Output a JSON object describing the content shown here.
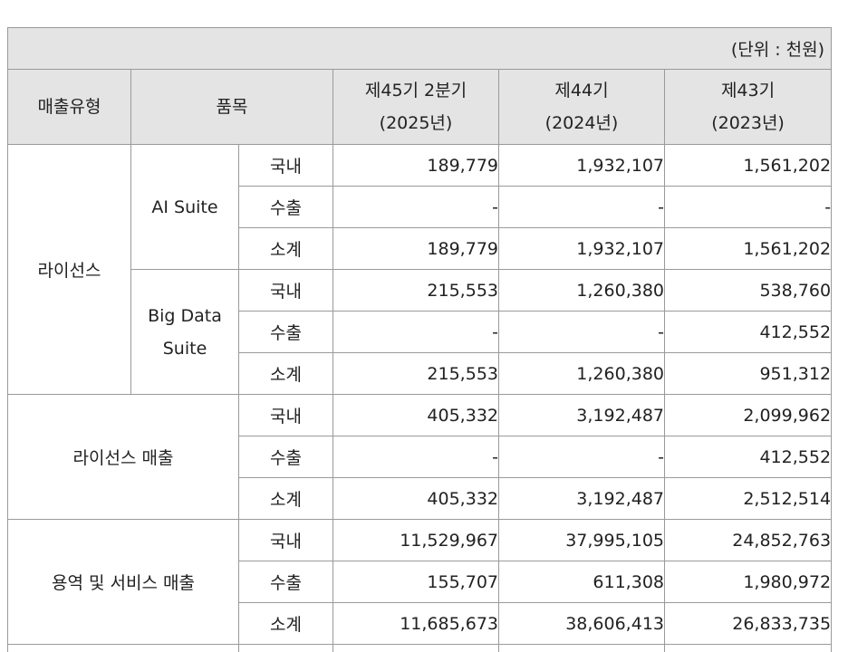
{
  "unit_label": "(단위 : 천원)",
  "headers": {
    "type": "매출유형",
    "item": "품목",
    "p45_line1": "제45기 2분기",
    "p45_line2": "(2025년)",
    "p44_line1": "제44기",
    "p44_line2": "(2024년)",
    "p43_line1": "제43기",
    "p43_line2": "(2023년)"
  },
  "groups": {
    "license": "라이선스",
    "ai_suite": "AI Suite",
    "bigdata_line1": "Big Data",
    "bigdata_line2": "Suite",
    "license_sales": "라이선스 매출",
    "service_sales": "용역 및 서비스 매출"
  },
  "rows": [
    {
      "kind": "국내",
      "v45": "189,779",
      "v44": "1,932,107",
      "v43": "1,561,202"
    },
    {
      "kind": "수출",
      "v45": "-",
      "v44": "-",
      "v43": "-"
    },
    {
      "kind": "소계",
      "v45": "189,779",
      "v44": "1,932,107",
      "v43": "1,561,202"
    },
    {
      "kind": "국내",
      "v45": "215,553",
      "v44": "1,260,380",
      "v43": "538,760"
    },
    {
      "kind": "수출",
      "v45": "-",
      "v44": "-",
      "v43": "412,552"
    },
    {
      "kind": "소계",
      "v45": "215,553",
      "v44": "1,260,380",
      "v43": "951,312"
    },
    {
      "kind": "국내",
      "v45": "405,332",
      "v44": "3,192,487",
      "v43": "2,099,962"
    },
    {
      "kind": "수출",
      "v45": "-",
      "v44": "-",
      "v43": "412,552"
    },
    {
      "kind": "소계",
      "v45": "405,332",
      "v44": "3,192,487",
      "v43": "2,512,514"
    },
    {
      "kind": "국내",
      "v45": "11,529,967",
      "v44": "37,995,105",
      "v43": "24,852,763"
    },
    {
      "kind": "수출",
      "v45": "155,707",
      "v44": "611,308",
      "v43": "1,980,972"
    },
    {
      "kind": "소계",
      "v45": "11,685,673",
      "v44": "38,606,413",
      "v43": "26,833,735"
    }
  ]
}
